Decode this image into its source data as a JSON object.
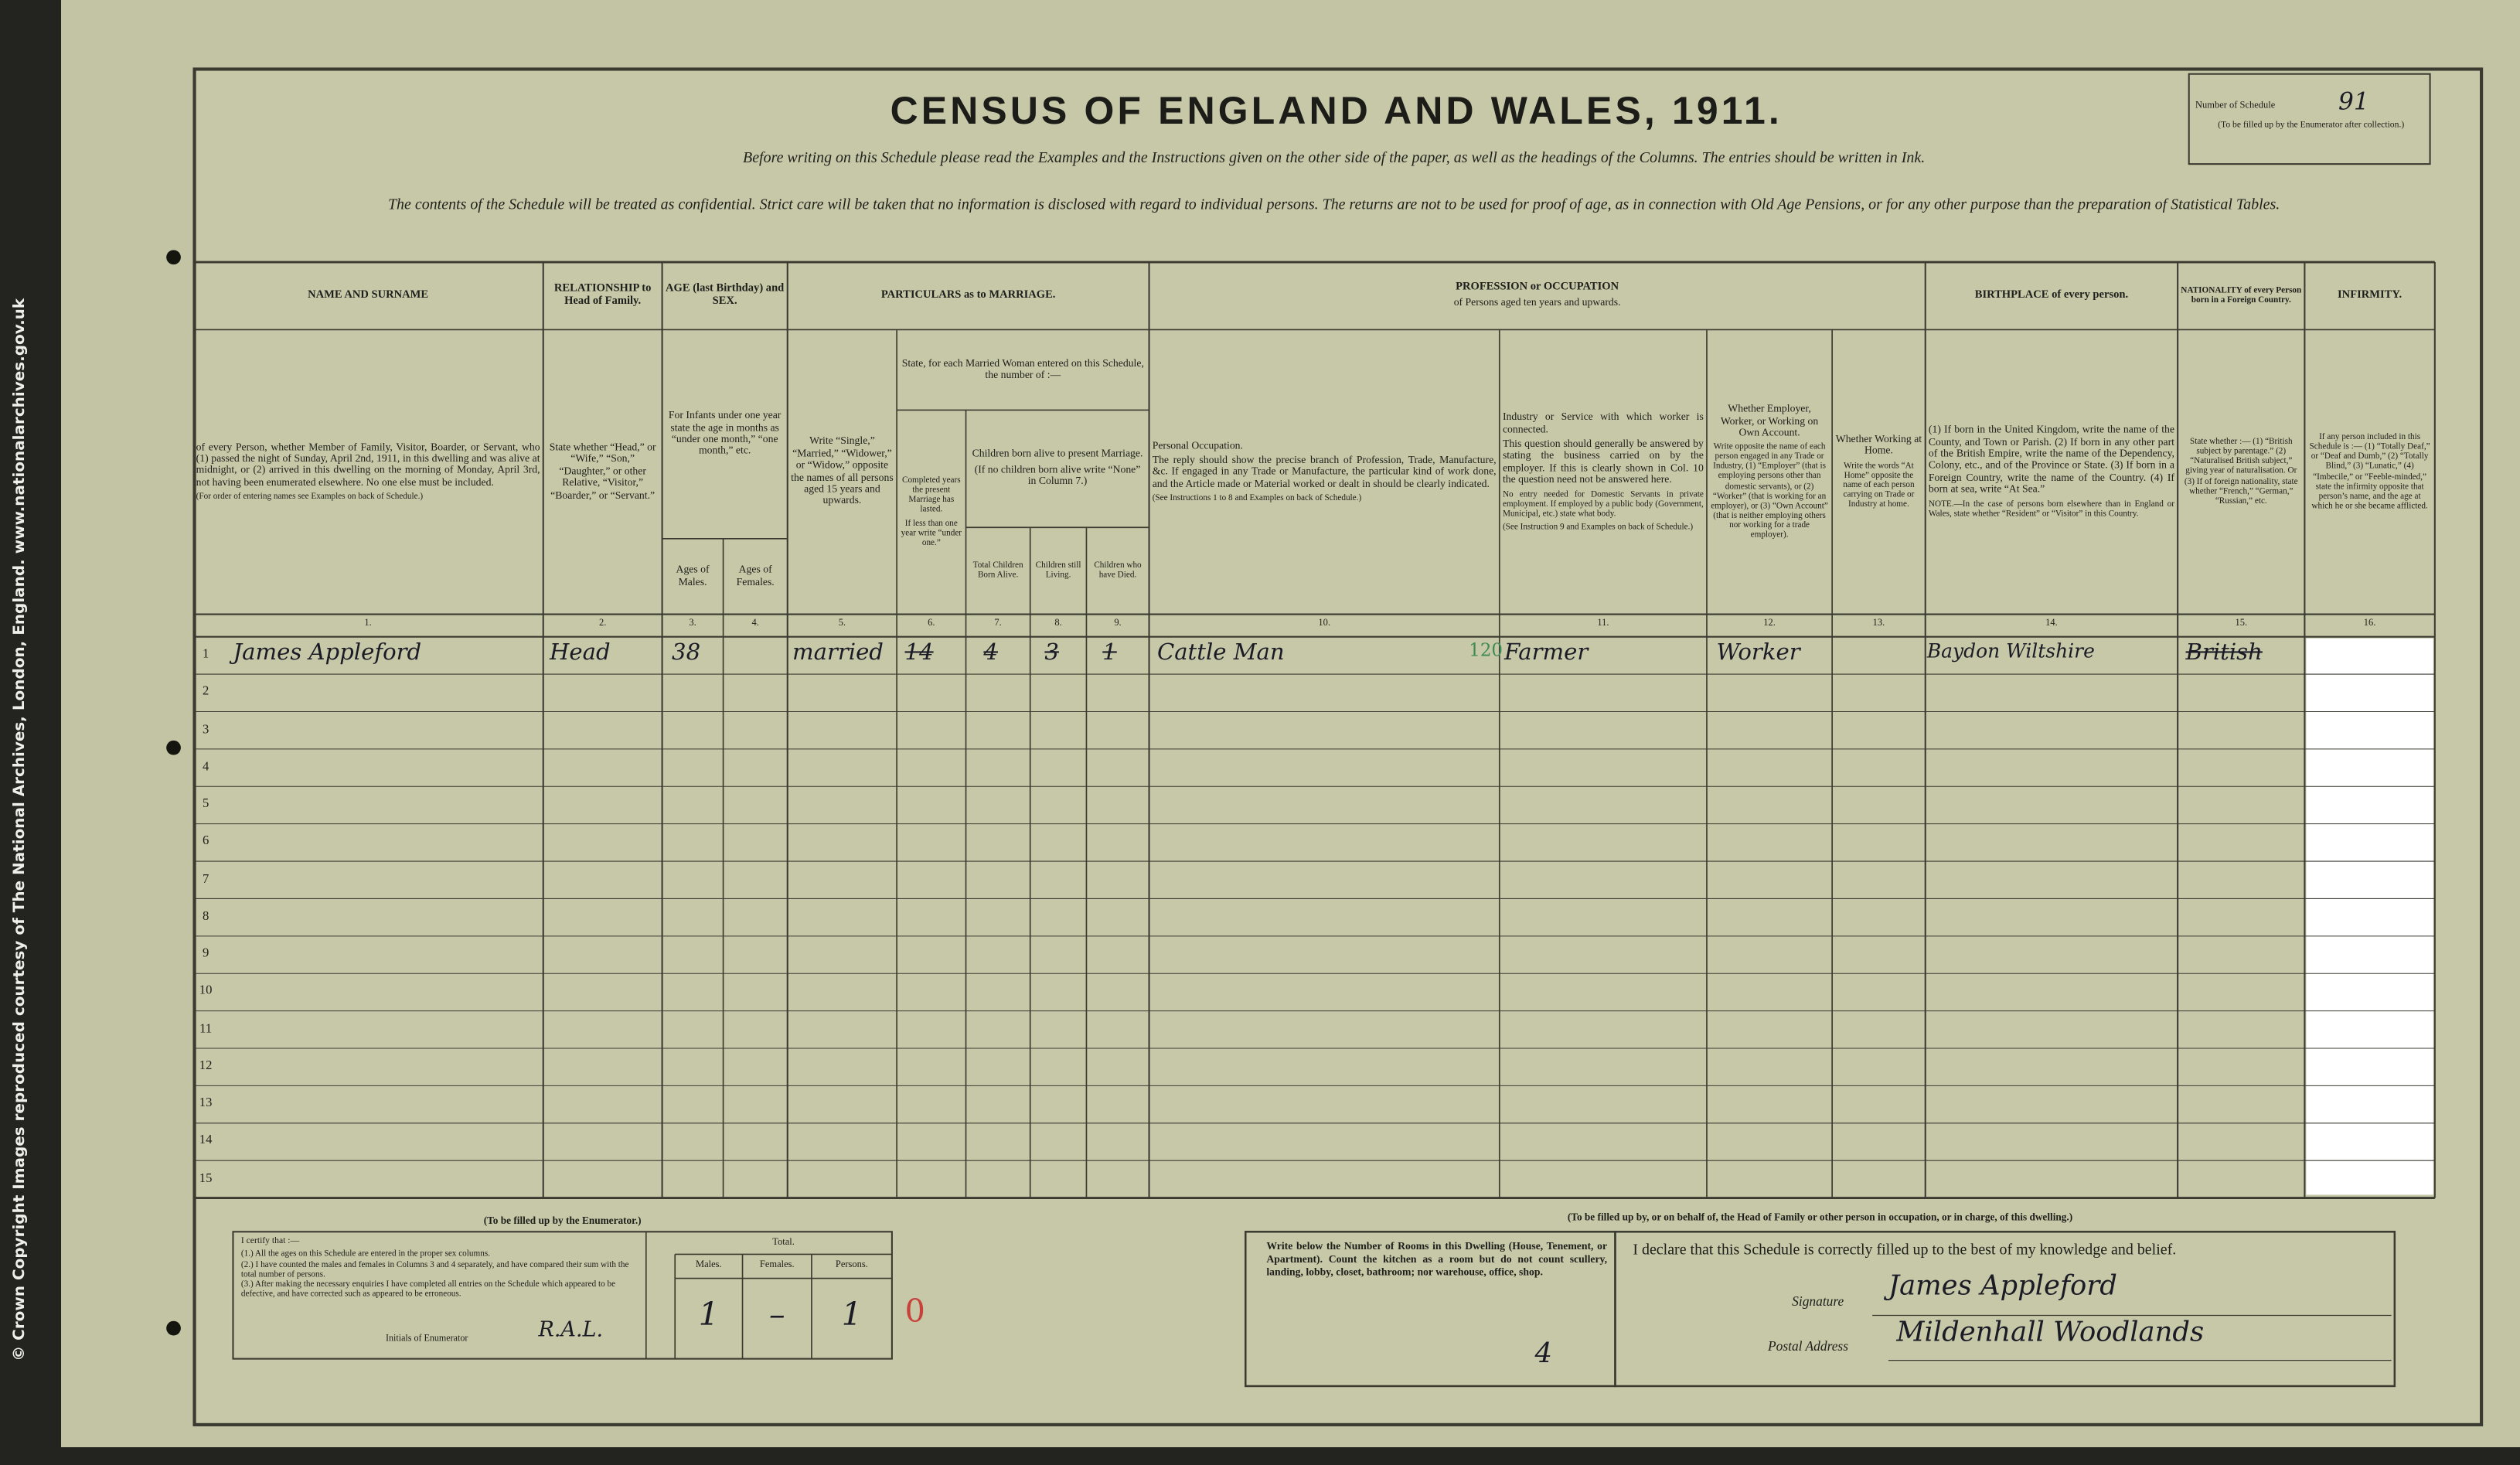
{
  "side_note": "© Crown Copyright Images reproduced courtesy of The National Archives, London, England. www.nationalarchives.gov.uk",
  "header": {
    "title": "CENSUS OF ENGLAND AND WALES, 1911.",
    "instruction_1": "Before writing on this Schedule please read the Examples and the Instructions given on the other side of the paper, as well as the headings of the Columns.  The entries should be written in Ink.",
    "instruction_2": "The contents of the Schedule will be treated as confidential.  Strict care will be taken that no information is disclosed with regard to individual persons.  The returns are not to be used for proof of age, as in connection with Old Age Pensions, or for any other purpose than the preparation of Statistical Tables.",
    "schedule_label": "Number of Schedule",
    "schedule_number": "91",
    "schedule_note": "(To be filled up by the Enumerator after collection.)"
  },
  "table": {
    "groups": {
      "name": "NAME AND SURNAME",
      "relationship": "RELATIONSHIP to Head of Family.",
      "age": "AGE (last Birthday) and SEX.",
      "age_note": "For Infants under one year state the age in months as “under one month,” “one month,” etc.",
      "marriage": "PARTICULARS as to MARRIAGE.",
      "married_woman": "State, for each Married Woman entered on this Schedule, the number of :—",
      "children": "Children born alive to present Marriage.",
      "children_note": "(If no children born alive write “None” in Column 7.)",
      "occupation": "PROFESSION or OCCUPATION",
      "occupation_sub": "of Persons aged ten years and upwards.",
      "birthplace": "BIRTHPLACE of every person.",
      "nationality": "NATIONALITY of every Person born in a Foreign Country.",
      "infirmity": "INFIRMITY."
    },
    "columns": [
      {
        "number": "1.",
        "text": "of every Person, whether Member of Family, Visitor, Boarder, or Servant, who (1) passed the night of Sunday, April 2nd, 1911, in this dwelling and was alive at midnight, or (2) arrived in this dwelling on the morning of Monday, April 3rd, not having been enumerated elsewhere. No one else must be included.",
        "note": "(For order of entering names see Examples on back of Schedule.)"
      },
      {
        "number": "2.",
        "text": "State whether “Head,” or “Wife,” “Son,” “Daughter,” or other Relative, “Visitor,” “Boarder,” or “Servant.”"
      },
      {
        "number": "3.",
        "text": "Ages of Males."
      },
      {
        "number": "4.",
        "text": "Ages of Females."
      },
      {
        "number": "5.",
        "text": "Write “Single,” “Married,” “Widower,” or “Widow,” opposite the names of all persons aged 15 years and upwards."
      },
      {
        "number": "6.",
        "text": "Completed years the present Marriage has lasted.",
        "small": "If less than one year write “under one.”"
      },
      {
        "number": "7.",
        "text": "Total Children Born Alive."
      },
      {
        "number": "8.",
        "text": "Children still Living."
      },
      {
        "number": "9.",
        "text": "Children who have Died."
      },
      {
        "number": "10.",
        "heading": "Personal Occupation.",
        "text": "The reply should show the precise branch of Profession, Trade, Manufacture, &c. If engaged in any Trade or Manufacture, the particular kind of work done, and the Article made or Material worked or dealt in should be clearly indicated.",
        "note": "(See Instructions 1 to 8 and Examples on back of Schedule.)"
      },
      {
        "number": "11.",
        "heading": "Industry or Service with which worker is connected.",
        "text": "This question should generally be answered by stating the business carried on by the employer. If this is clearly shown in Col. 10 the question need not be answered here.",
        "small": "No entry needed for Domestic Servants in private employment. If employed by a public body (Government, Municipal, etc.) state what body.",
        "note": "(See Instruction 9 and Examples on back of Schedule.)"
      },
      {
        "number": "12.",
        "heading": "Whether Employer, Worker, or Working on Own Account.",
        "small": "Write opposite the name of each person engaged in any Trade or Industry, (1) “Employer” (that is employing persons other than domestic servants), or (2) “Worker” (that is working for an employer), or (3) “Own Account” (that is neither employing others nor working for a trade employer)."
      },
      {
        "number": "13.",
        "heading": "Whether Working at Home.",
        "small": "Write the words “At Home” opposite the name of each person carrying on Trade or Industry at home."
      },
      {
        "number": "14.",
        "text": "(1) If born in the United Kingdom, write the name of the County, and Town or Parish. (2) If born in any other part of the British Empire, write the name of the Dependency, Colony, etc., and of the Province or State. (3) If born in a Foreign Country, write the name of the Country. (4) If born at sea, write “At Sea.”",
        "note": "NOTE.—In the case of persons born elsewhere than in England or Wales, state whether “Resident” or “Visitor” in this Country."
      },
      {
        "number": "15.",
        "text": "State whether :— (1) “British subject by parentage.” (2) “Naturalised British subject,” giving year of naturalisation. Or (3) If of foreign nationality, state whether “French,” “German,” “Russian,” etc."
      },
      {
        "number": "16.",
        "text": "If any person included in this Schedule is :— (1) “Totally Deaf,” or “Deaf and Dumb,” (2) “Totally Blind,” (3) “Lunatic,” (4) “Imbecile,” or “Feeble-minded,” state the infirmity opposite that person’s name, and the age at which he or she became afflicted."
      }
    ],
    "row_numbers": [
      "1",
      "2",
      "3",
      "4",
      "5",
      "6",
      "7",
      "8",
      "9",
      "10",
      "11",
      "12",
      "13",
      "14",
      "15"
    ],
    "entries": [
      {
        "name": "James Appleford",
        "relationship": "Head",
        "age_male": "38",
        "marital_condition": "married",
        "years_married": "14",
        "children_born": "4",
        "children_living": "3",
        "children_died": "1",
        "personal_occupation": "Cattle Man",
        "occupation_code": "120",
        "industry": "Farmer",
        "employment": "Worker",
        "birthplace": "Baydon Wiltshire",
        "nationality": "British"
      }
    ]
  },
  "enumerator": {
    "heading": "(To be filled up by the Enumerator.)",
    "certify": "I certify that :—",
    "statements": [
      "(1.) All the ages on this Schedule are entered in the proper sex columns.",
      "(2.) I have counted the males and females in Columns 3 and 4 separately, and have compared their sum with the total number of persons.",
      "(3.) After making the necessary enquiries I have completed all entries on the Schedule which appeared to be defective, and have corrected such as appeared to be erroneous."
    ],
    "initials_label": "Initials of Enumerator",
    "initials": "R.A.L.",
    "total_label": "Total.",
    "males_label": "Males.",
    "females_label": "Females.",
    "persons_label": "Persons.",
    "males": "1",
    "females": "–",
    "persons": "1",
    "check_mark": "0"
  },
  "occupier": {
    "heading": "(To be filled up by, or on behalf of, the Head of Family or other person in occupation, or in charge, of this dwelling.)",
    "rooms_instruction": "Write below the Number of Rooms in this Dwelling (House, Tenement, or Apartment). Count the kitchen as a room but do not count scullery, landing, lobby, closet, bathroom; nor warehouse, office, shop.",
    "rooms": "4",
    "declaration": "I declare that this Schedule is correctly filled up to the best of my knowledge and belief.",
    "signature_label": "Signature",
    "signature": "James Appleford",
    "address_label": "Postal Address",
    "address": "Mildenhall Woodlands"
  }
}
